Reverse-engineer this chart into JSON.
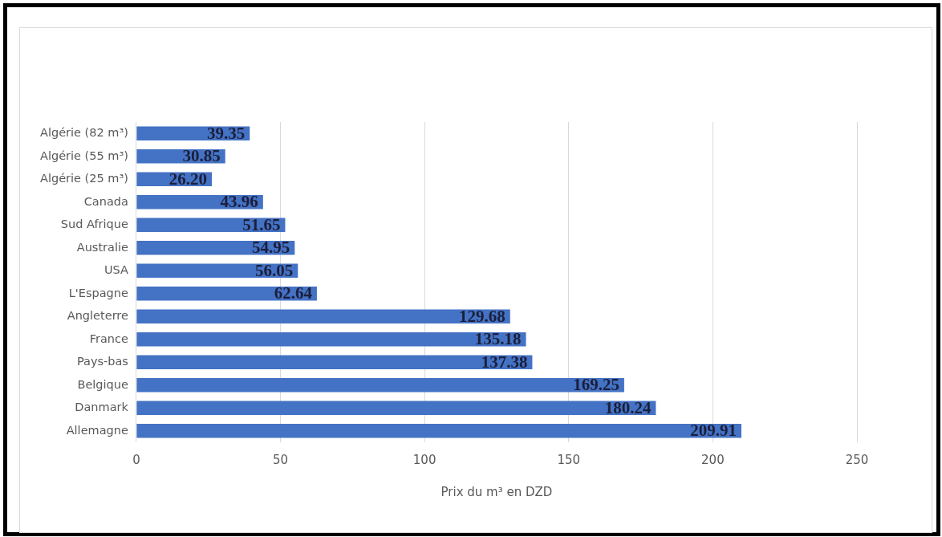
{
  "chart_data": {
    "type": "bar",
    "orientation": "horizontal",
    "xlabel": "Prix du m³ en DZD",
    "categories": [
      "Algérie (82 m³)",
      "Algérie (55 m³)",
      "Algérie (25 m³)",
      "Canada",
      "Sud Afrique",
      "Australie",
      "USA",
      "L'Espagne",
      "Angleterre",
      "France",
      "Pays-bas",
      "Belgique",
      "Danmark",
      "Allemagne"
    ],
    "values": [
      39.35,
      30.85,
      26.2,
      43.96,
      51.65,
      54.95,
      56.05,
      62.64,
      129.68,
      135.18,
      137.38,
      169.25,
      180.24,
      209.91
    ],
    "value_labels": [
      "39.35",
      "30.85",
      "26.20",
      "43.96",
      "51.65",
      "54.95",
      "56.05",
      "62.64",
      "129.68",
      "135.18",
      "137.38",
      "169.25",
      "180.24",
      "209.91"
    ],
    "color": "#4472c4",
    "xlim": [
      0,
      250
    ],
    "xticks": [
      0,
      50,
      100,
      150,
      200,
      250
    ],
    "grid": "x"
  }
}
